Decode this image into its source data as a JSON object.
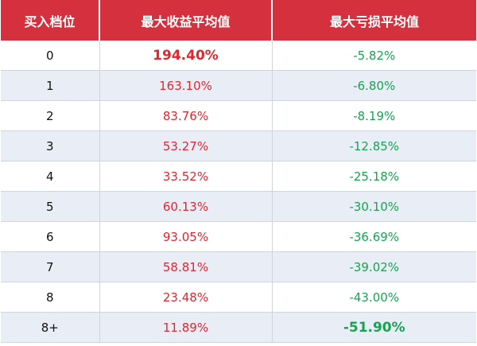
{
  "chart_data": {
    "type": "table",
    "columns": [
      "买入档位",
      "最大收益平均值",
      "最大亏损平均值"
    ],
    "rows": [
      {
        "level": "0",
        "max_gain_avg": "194.40%",
        "max_loss_avg": "-5.82%"
      },
      {
        "level": "1",
        "max_gain_avg": "163.10%",
        "max_loss_avg": "-6.80%"
      },
      {
        "level": "2",
        "max_gain_avg": "83.76%",
        "max_loss_avg": "-8.19%"
      },
      {
        "level": "3",
        "max_gain_avg": "53.27%",
        "max_loss_avg": "-12.85%"
      },
      {
        "level": "4",
        "max_gain_avg": "33.52%",
        "max_loss_avg": "-25.18%"
      },
      {
        "level": "5",
        "max_gain_avg": "60.13%",
        "max_loss_avg": "-30.10%"
      },
      {
        "level": "6",
        "max_gain_avg": "93.05%",
        "max_loss_avg": "-36.69%"
      },
      {
        "level": "7",
        "max_gain_avg": "58.81%",
        "max_loss_avg": "-39.02%"
      },
      {
        "level": "8",
        "max_gain_avg": "23.48%",
        "max_loss_avg": "-43.00%"
      },
      {
        "level": "8+",
        "max_gain_avg": "11.89%",
        "max_loss_avg": "-51.90%"
      }
    ],
    "emphasized": {
      "max_gain_avg": "194.40%",
      "max_loss_avg": "-51.90%"
    }
  },
  "colors": {
    "header_bg": "#d5303e",
    "header_text": "#ffffff",
    "gain_text": "#e0262f",
    "loss_text": "#1aa253",
    "stripe": "#e8edf6"
  }
}
